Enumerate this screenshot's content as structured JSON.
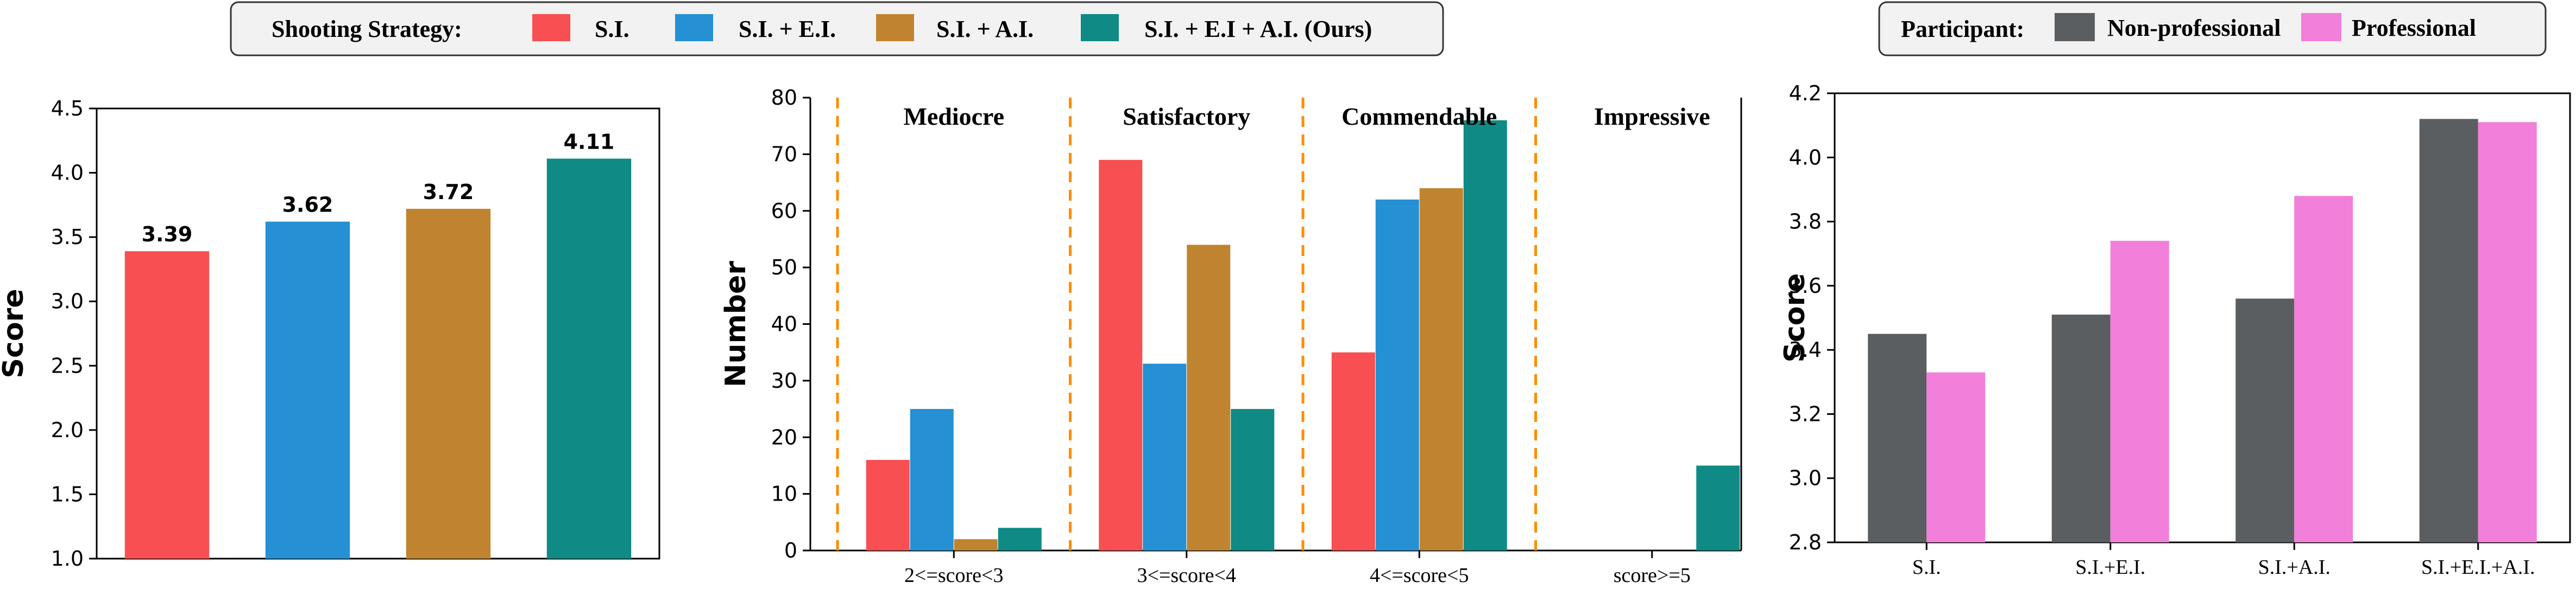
{
  "legend_strategy": {
    "title": "Shooting Strategy:",
    "items": [
      {
        "label": "S.I.",
        "color": "#f74f52"
      },
      {
        "label": "S.I. + E.I.",
        "color": "#2590d3"
      },
      {
        "label": "S.I. + A.I.",
        "color": "#c08430"
      },
      {
        "label": "S.I. + E.I + A.I. (Ours)",
        "color": "#0f8a84"
      }
    ]
  },
  "legend_participant": {
    "title": "Participant:",
    "items": [
      {
        "label": "Non-professional",
        "color": "#5b5e61"
      },
      {
        "label": "Professional",
        "color": "#f27fd9"
      }
    ]
  },
  "chart_data": [
    {
      "type": "bar",
      "title": "",
      "xlabel": "",
      "ylabel": "Score",
      "ylim": [
        1.0,
        4.5
      ],
      "yticks": [
        "1.0",
        "1.5",
        "2.0",
        "2.5",
        "3.0",
        "3.5",
        "4.0",
        "4.5"
      ],
      "categories": [
        "S.I.",
        "S.I. + E.I.",
        "S.I. + A.I.",
        "S.I. + E.I + A.I. (Ours)"
      ],
      "values": [
        3.39,
        3.62,
        3.72,
        4.11
      ],
      "data_labels": [
        "3.39",
        "3.62",
        "3.72",
        "4.11"
      ],
      "colors": [
        "#f74f52",
        "#2590d3",
        "#c08430",
        "#0f8a84"
      ],
      "show_xticks": false
    },
    {
      "type": "bar",
      "title": "",
      "xlabel": "",
      "ylabel": "Number",
      "ylim": [
        0,
        80
      ],
      "yticks": [
        "0",
        "10",
        "20",
        "30",
        "40",
        "50",
        "60",
        "70",
        "80"
      ],
      "categories": [
        "2<=score<3",
        "3<=score<4",
        "4<=score<5",
        "score>=5"
      ],
      "zones": [
        "Mediocre",
        "Satisfactory",
        "Commendable",
        "Impressive"
      ],
      "series": [
        {
          "name": "S.I.",
          "color": "#f74f52",
          "values": [
            16,
            69,
            35,
            0
          ]
        },
        {
          "name": "S.I. + E.I.",
          "color": "#2590d3",
          "values": [
            25,
            33,
            62,
            0
          ]
        },
        {
          "name": "S.I. + A.I.",
          "color": "#c08430",
          "values": [
            2,
            54,
            64,
            0
          ]
        },
        {
          "name": "S.I. + E.I + A.I. (Ours)",
          "color": "#0f8a84",
          "values": [
            4,
            25,
            76,
            15
          ]
        }
      ]
    },
    {
      "type": "bar",
      "title": "",
      "xlabel": "",
      "ylabel": "Score",
      "ylim": [
        2.8,
        4.2
      ],
      "yticks": [
        "2.8",
        "3.0",
        "3.2",
        "3.4",
        "3.6",
        "3.8",
        "4.0",
        "4.2"
      ],
      "categories": [
        "S.I.",
        "S.I.+E.I.",
        "S.I.+A.I.",
        "S.I.+E.I.+A.I."
      ],
      "series": [
        {
          "name": "Non-professional",
          "color": "#5b5e61",
          "values": [
            3.45,
            3.51,
            3.56,
            4.12
          ]
        },
        {
          "name": "Professional",
          "color": "#f27fd9",
          "values": [
            3.33,
            3.74,
            3.88,
            4.11
          ]
        }
      ]
    }
  ]
}
